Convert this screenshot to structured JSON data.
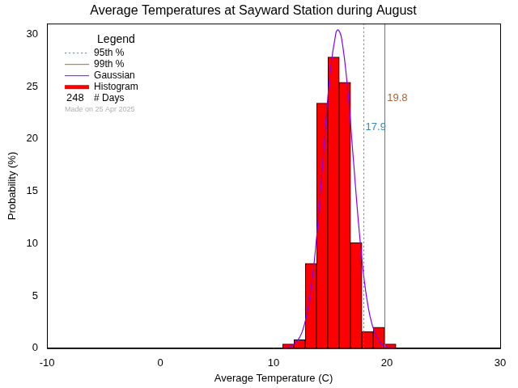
{
  "chart_data": {
    "type": "histogram",
    "title": "Average Temperatures at Sayward Station during August",
    "x_label": "Average Temperature (C)",
    "y_label": "Probability (%)",
    "xlim": [
      -10,
      30
    ],
    "xticks": [
      -10,
      0,
      10,
      20,
      30
    ],
    "ylim": [
      0,
      31
    ],
    "yticks": [
      0,
      5,
      10,
      15,
      20,
      25,
      30
    ],
    "grid": false,
    "legend": "upper left",
    "legend_title": "Legend",
    "series": [
      {
        "name": "Histogram",
        "type": "bar",
        "color": "#ff0000",
        "bins": [
          10.8,
          11.8,
          12.8,
          13.8,
          14.8,
          15.8,
          16.8,
          17.8,
          18.8,
          19.8,
          20.8
        ],
        "values": [
          0.4,
          0.8,
          8.1,
          23.4,
          27.8,
          25.4,
          10.1,
          1.6,
          2.0,
          0.4
        ]
      },
      {
        "name": "Gaussian",
        "type": "line",
        "color": "#8000ff",
        "line_style": "solid",
        "x": [
          11,
          11.5,
          12,
          12.5,
          13,
          13.5,
          14,
          14.5,
          15,
          15.5,
          15.7,
          16,
          16.5,
          17,
          17.5,
          18,
          18.5,
          19,
          19.5,
          20,
          20.5
        ],
        "values": [
          0.05,
          0.18,
          0.56,
          1.5,
          3.6,
          7.4,
          13.1,
          20.0,
          26.4,
          30.1,
          30.4,
          29.6,
          25.2,
          18.6,
          11.9,
          6.5,
          3.1,
          1.3,
          0.45,
          0.14,
          0.04
        ]
      }
    ],
    "percentiles": [
      {
        "name": "95th %",
        "value": 17.9,
        "color": "#2a8fbd",
        "line_style": "dotted"
      },
      {
        "name": "99th %",
        "value": 19.8,
        "color": "#a8643a",
        "line_style": "solid"
      }
    ],
    "days": 248,
    "days_label": "# Days",
    "annotation": "Made on 25 Apr 2025"
  }
}
